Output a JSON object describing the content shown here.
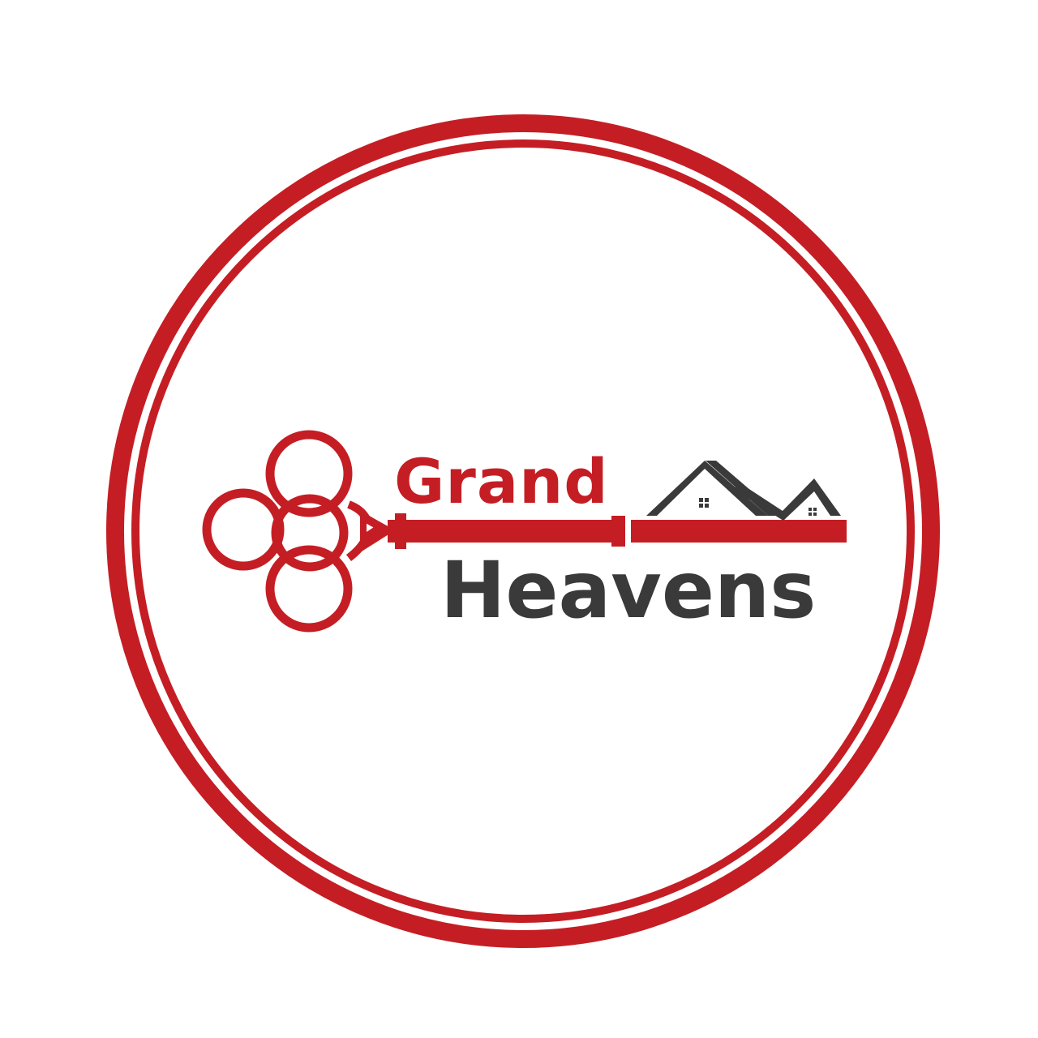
{
  "logo": {
    "word_top": "Grand",
    "word_bottom": "Heavens",
    "colors": {
      "background": "#ffffff",
      "ring": "#c41e24",
      "key": "#c41e24",
      "word_top": "#c41e24",
      "word_bottom": "#3a3a3a",
      "roof": "#3a3a3a"
    },
    "icons": [
      "ring-border",
      "key-icon",
      "house-roof-icon"
    ]
  }
}
